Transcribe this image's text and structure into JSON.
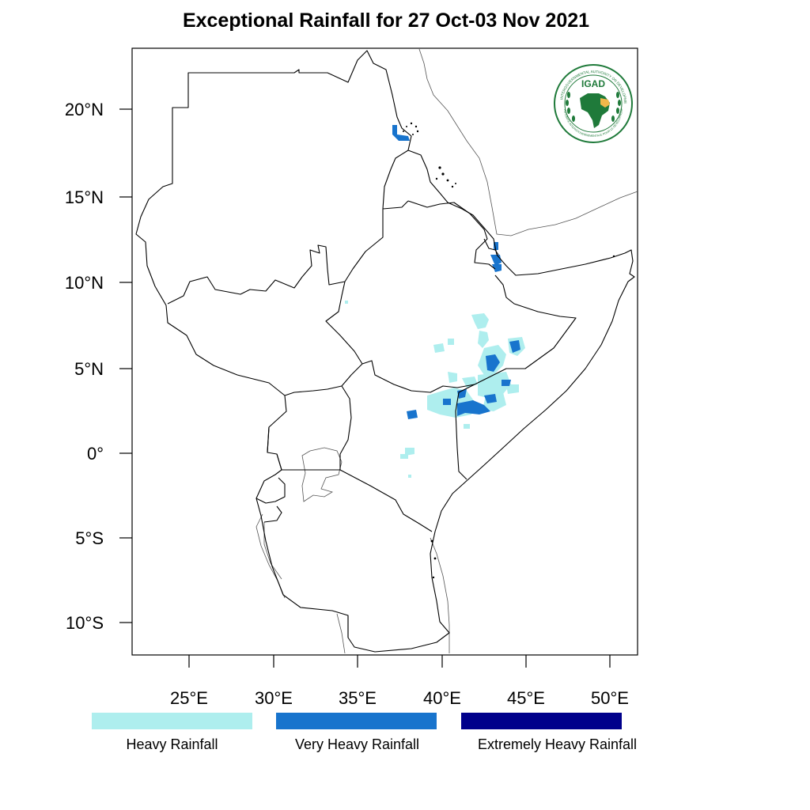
{
  "title": "Exceptional Rainfall for 27 Oct-03 Nov 2021",
  "logo": {
    "text": "IGAD",
    "ring_text_top": "INTERGOVERNMENTAL AUTHORITY ON DEVELOPMENT",
    "ring_text_bottom": "AUTORITÉ INTERGOUVERNEMENTALE POUR LE DÉVELOPPEMENT",
    "color": "#1f7a3a",
    "accent": "#f2b84b"
  },
  "axes": {
    "lat_ticks": [
      "20°N",
      "15°N",
      "10°N",
      "5°N",
      "0°",
      "5°S",
      "10°S"
    ],
    "lon_ticks": [
      "25°E",
      "30°E",
      "35°E",
      "40°E",
      "45°E",
      "50°E"
    ]
  },
  "legend": [
    {
      "label": "Heavy Rainfall",
      "color": "#aeeeee"
    },
    {
      "label": "Very Heavy Rainfall",
      "color": "#1874cd"
    },
    {
      "label": "Extremely Heavy Rainfall",
      "color": "#00008b"
    }
  ],
  "map": {
    "type": "choropleth-grid",
    "lon_range": [
      21.7,
      51.7
    ],
    "lat_range": [
      -11.9,
      23.6
    ],
    "border_color": "#000000"
  }
}
